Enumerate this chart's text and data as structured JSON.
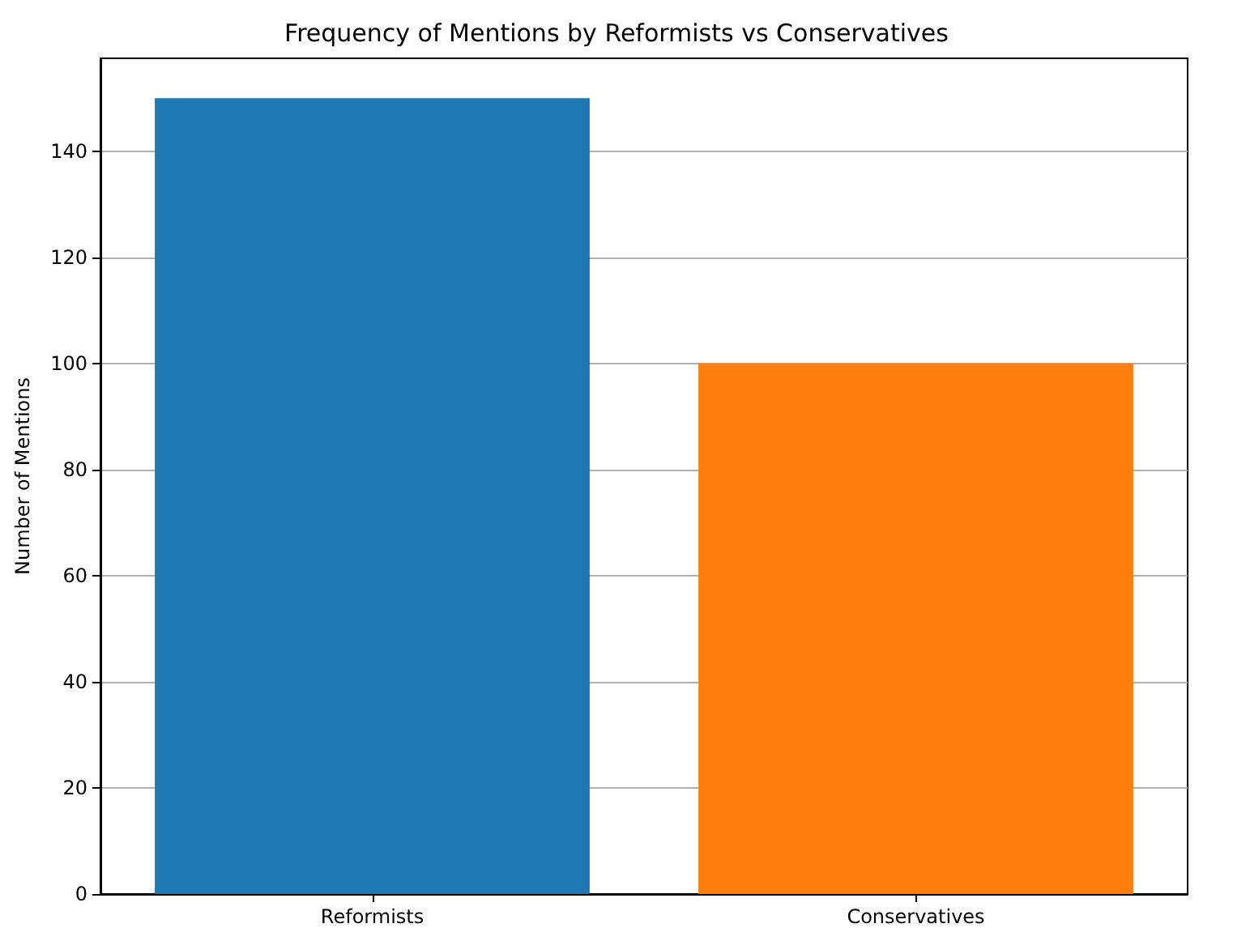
{
  "chart_data": {
    "type": "bar",
    "title": "Frequency of Mentions by Reformists vs Conservatives",
    "ylabel": "Number of Mentions",
    "categories": [
      "Reformists",
      "Conservatives"
    ],
    "values": [
      150,
      100
    ],
    "colors": [
      "#1f77b4",
      "#ff7f0e"
    ],
    "ylim": [
      0,
      157.5
    ],
    "yticks": [
      0,
      20,
      40,
      60,
      80,
      100,
      120,
      140
    ],
    "grid": "y"
  }
}
